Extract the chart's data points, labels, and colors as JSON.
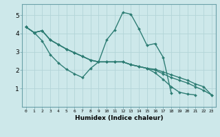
{
  "title": "",
  "xlabel": "Humidex (Indice chaleur)",
  "ylabel": "",
  "xlim": [
    -0.5,
    23.5
  ],
  "ylim": [
    0,
    5.6
  ],
  "yticks": [
    1,
    2,
    3,
    4,
    5
  ],
  "xticks": [
    0,
    1,
    2,
    3,
    4,
    5,
    6,
    7,
    8,
    9,
    10,
    11,
    12,
    13,
    14,
    15,
    16,
    17,
    18,
    19,
    20,
    21,
    22,
    23
  ],
  "bg_color": "#cde8ea",
  "grid_color": "#b2d4d8",
  "line_color": "#2e7d74",
  "line_width": 1.0,
  "marker": "D",
  "marker_size": 2.0,
  "series": [
    {
      "x": [
        0,
        1,
        2,
        3,
        4,
        5,
        6,
        7,
        8,
        9,
        10,
        11,
        12,
        13,
        14,
        15,
        16,
        17,
        18
      ],
      "y": [
        4.35,
        4.05,
        3.6,
        2.85,
        2.4,
        2.05,
        1.8,
        1.6,
        2.1,
        2.45,
        3.65,
        4.2,
        5.15,
        5.05,
        4.25,
        3.35,
        3.45,
        2.7,
        0.75
      ]
    },
    {
      "x": [
        0,
        1,
        2,
        3,
        4,
        5,
        6,
        7,
        8,
        9,
        10,
        11,
        12,
        13,
        14,
        15,
        16,
        17,
        18,
        19,
        20,
        21,
        22,
        23
      ],
      "y": [
        4.35,
        4.05,
        4.15,
        3.65,
        3.4,
        3.15,
        2.95,
        2.75,
        2.55,
        2.45,
        2.45,
        2.45,
        2.45,
        2.3,
        2.2,
        2.1,
        2.05,
        1.9,
        1.75,
        1.6,
        1.45,
        1.25,
        1.1,
        0.65
      ]
    },
    {
      "x": [
        0,
        1,
        2,
        3,
        4,
        5,
        6,
        7,
        8,
        9,
        10,
        11,
        12,
        13,
        14,
        15,
        16,
        17,
        18,
        19,
        20,
        21
      ],
      "y": [
        4.35,
        4.05,
        4.15,
        3.65,
        3.4,
        3.15,
        2.95,
        2.75,
        2.55,
        2.45,
        2.45,
        2.45,
        2.45,
        2.3,
        2.2,
        2.1,
        1.85,
        1.5,
        1.1,
        0.8,
        0.7,
        0.65
      ]
    },
    {
      "x": [
        0,
        1,
        2,
        3,
        4,
        5,
        6,
        7,
        8,
        9,
        10,
        11,
        12,
        13,
        14,
        15,
        16,
        17,
        18,
        19,
        20,
        21,
        22,
        23
      ],
      "y": [
        4.35,
        4.05,
        4.15,
        3.65,
        3.4,
        3.15,
        2.95,
        2.75,
        2.55,
        2.45,
        2.45,
        2.45,
        2.45,
        2.3,
        2.2,
        2.1,
        2.0,
        1.8,
        1.6,
        1.45,
        1.3,
        1.1,
        0.9,
        0.65
      ]
    }
  ]
}
